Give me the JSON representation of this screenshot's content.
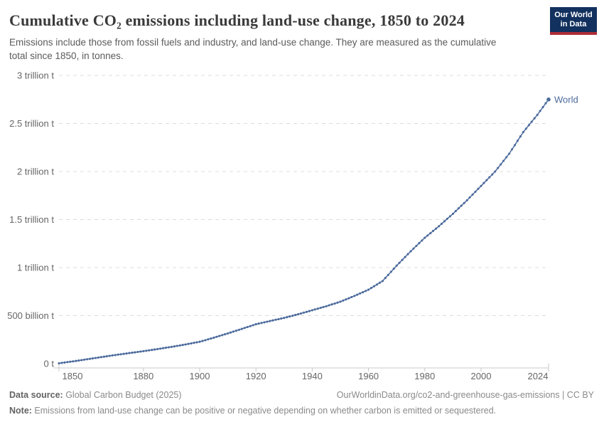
{
  "header": {
    "title": "Cumulative CO₂ emissions including land-use change, 1850 to 2024",
    "subtitle": "Emissions include those from fossil fuels and industry, and land-use change. They are measured as the cumulative total since 1850, in tonnes.",
    "logo_line1": "Our World",
    "logo_line2": "in Data"
  },
  "chart_data": {
    "type": "line",
    "title": "Cumulative CO₂ emissions including land-use change, 1850 to 2024",
    "unit": "billion tonnes",
    "x_range": [
      1850,
      2024
    ],
    "y_range": [
      0,
      3000
    ],
    "grid": "horizontal dashed",
    "legend_position": "end-of-line label",
    "x_ticks": [
      1850,
      1880,
      1900,
      1920,
      1940,
      1960,
      1980,
      2000,
      2024
    ],
    "y_ticks": [
      {
        "value": 0,
        "label": "0 t"
      },
      {
        "value": 500,
        "label": "500 billion t"
      },
      {
        "value": 1000,
        "label": "1 trillion t"
      },
      {
        "value": 1500,
        "label": "1.5 trillion t"
      },
      {
        "value": 2000,
        "label": "2 trillion t"
      },
      {
        "value": 2500,
        "label": "2.5 trillion t"
      },
      {
        "value": 3000,
        "label": "3 trillion t"
      }
    ],
    "series": [
      {
        "name": "World",
        "end_label": "World",
        "color": "#4c6a9c",
        "points": [
          [
            1850,
            4
          ],
          [
            1855,
            24
          ],
          [
            1860,
            46
          ],
          [
            1865,
            68
          ],
          [
            1870,
            90
          ],
          [
            1875,
            110
          ],
          [
            1880,
            130
          ],
          [
            1885,
            152
          ],
          [
            1890,
            175
          ],
          [
            1895,
            200
          ],
          [
            1900,
            228
          ],
          [
            1905,
            270
          ],
          [
            1910,
            315
          ],
          [
            1915,
            362
          ],
          [
            1920,
            410
          ],
          [
            1925,
            444
          ],
          [
            1930,
            476
          ],
          [
            1935,
            514
          ],
          [
            1940,
            556
          ],
          [
            1945,
            598
          ],
          [
            1950,
            645
          ],
          [
            1955,
            705
          ],
          [
            1960,
            770
          ],
          [
            1965,
            860
          ],
          [
            1970,
            1020
          ],
          [
            1975,
            1170
          ],
          [
            1980,
            1310
          ],
          [
            1985,
            1430
          ],
          [
            1990,
            1560
          ],
          [
            1995,
            1700
          ],
          [
            2000,
            1850
          ],
          [
            2005,
            2000
          ],
          [
            2010,
            2185
          ],
          [
            2015,
            2410
          ],
          [
            2020,
            2590
          ],
          [
            2024,
            2750
          ]
        ]
      }
    ]
  },
  "footer": {
    "datasource_label": "Data source:",
    "datasource_value": " Global Carbon Budget (2025)",
    "link": "OurWorldinData.org/co2-and-greenhouse-gas-emissions | CC BY",
    "note_label": "Note:",
    "note_value": " Emissions from land-use change can be positive or negative depending on whether carbon is emitted or sequestered."
  },
  "colors": {
    "line": "#4c6a9c",
    "grid": "#dcdcdc",
    "axis": "#c8c8c8",
    "tick_label": "#666666",
    "logo_bg": "#12315e",
    "logo_red": "#ab2d38"
  }
}
